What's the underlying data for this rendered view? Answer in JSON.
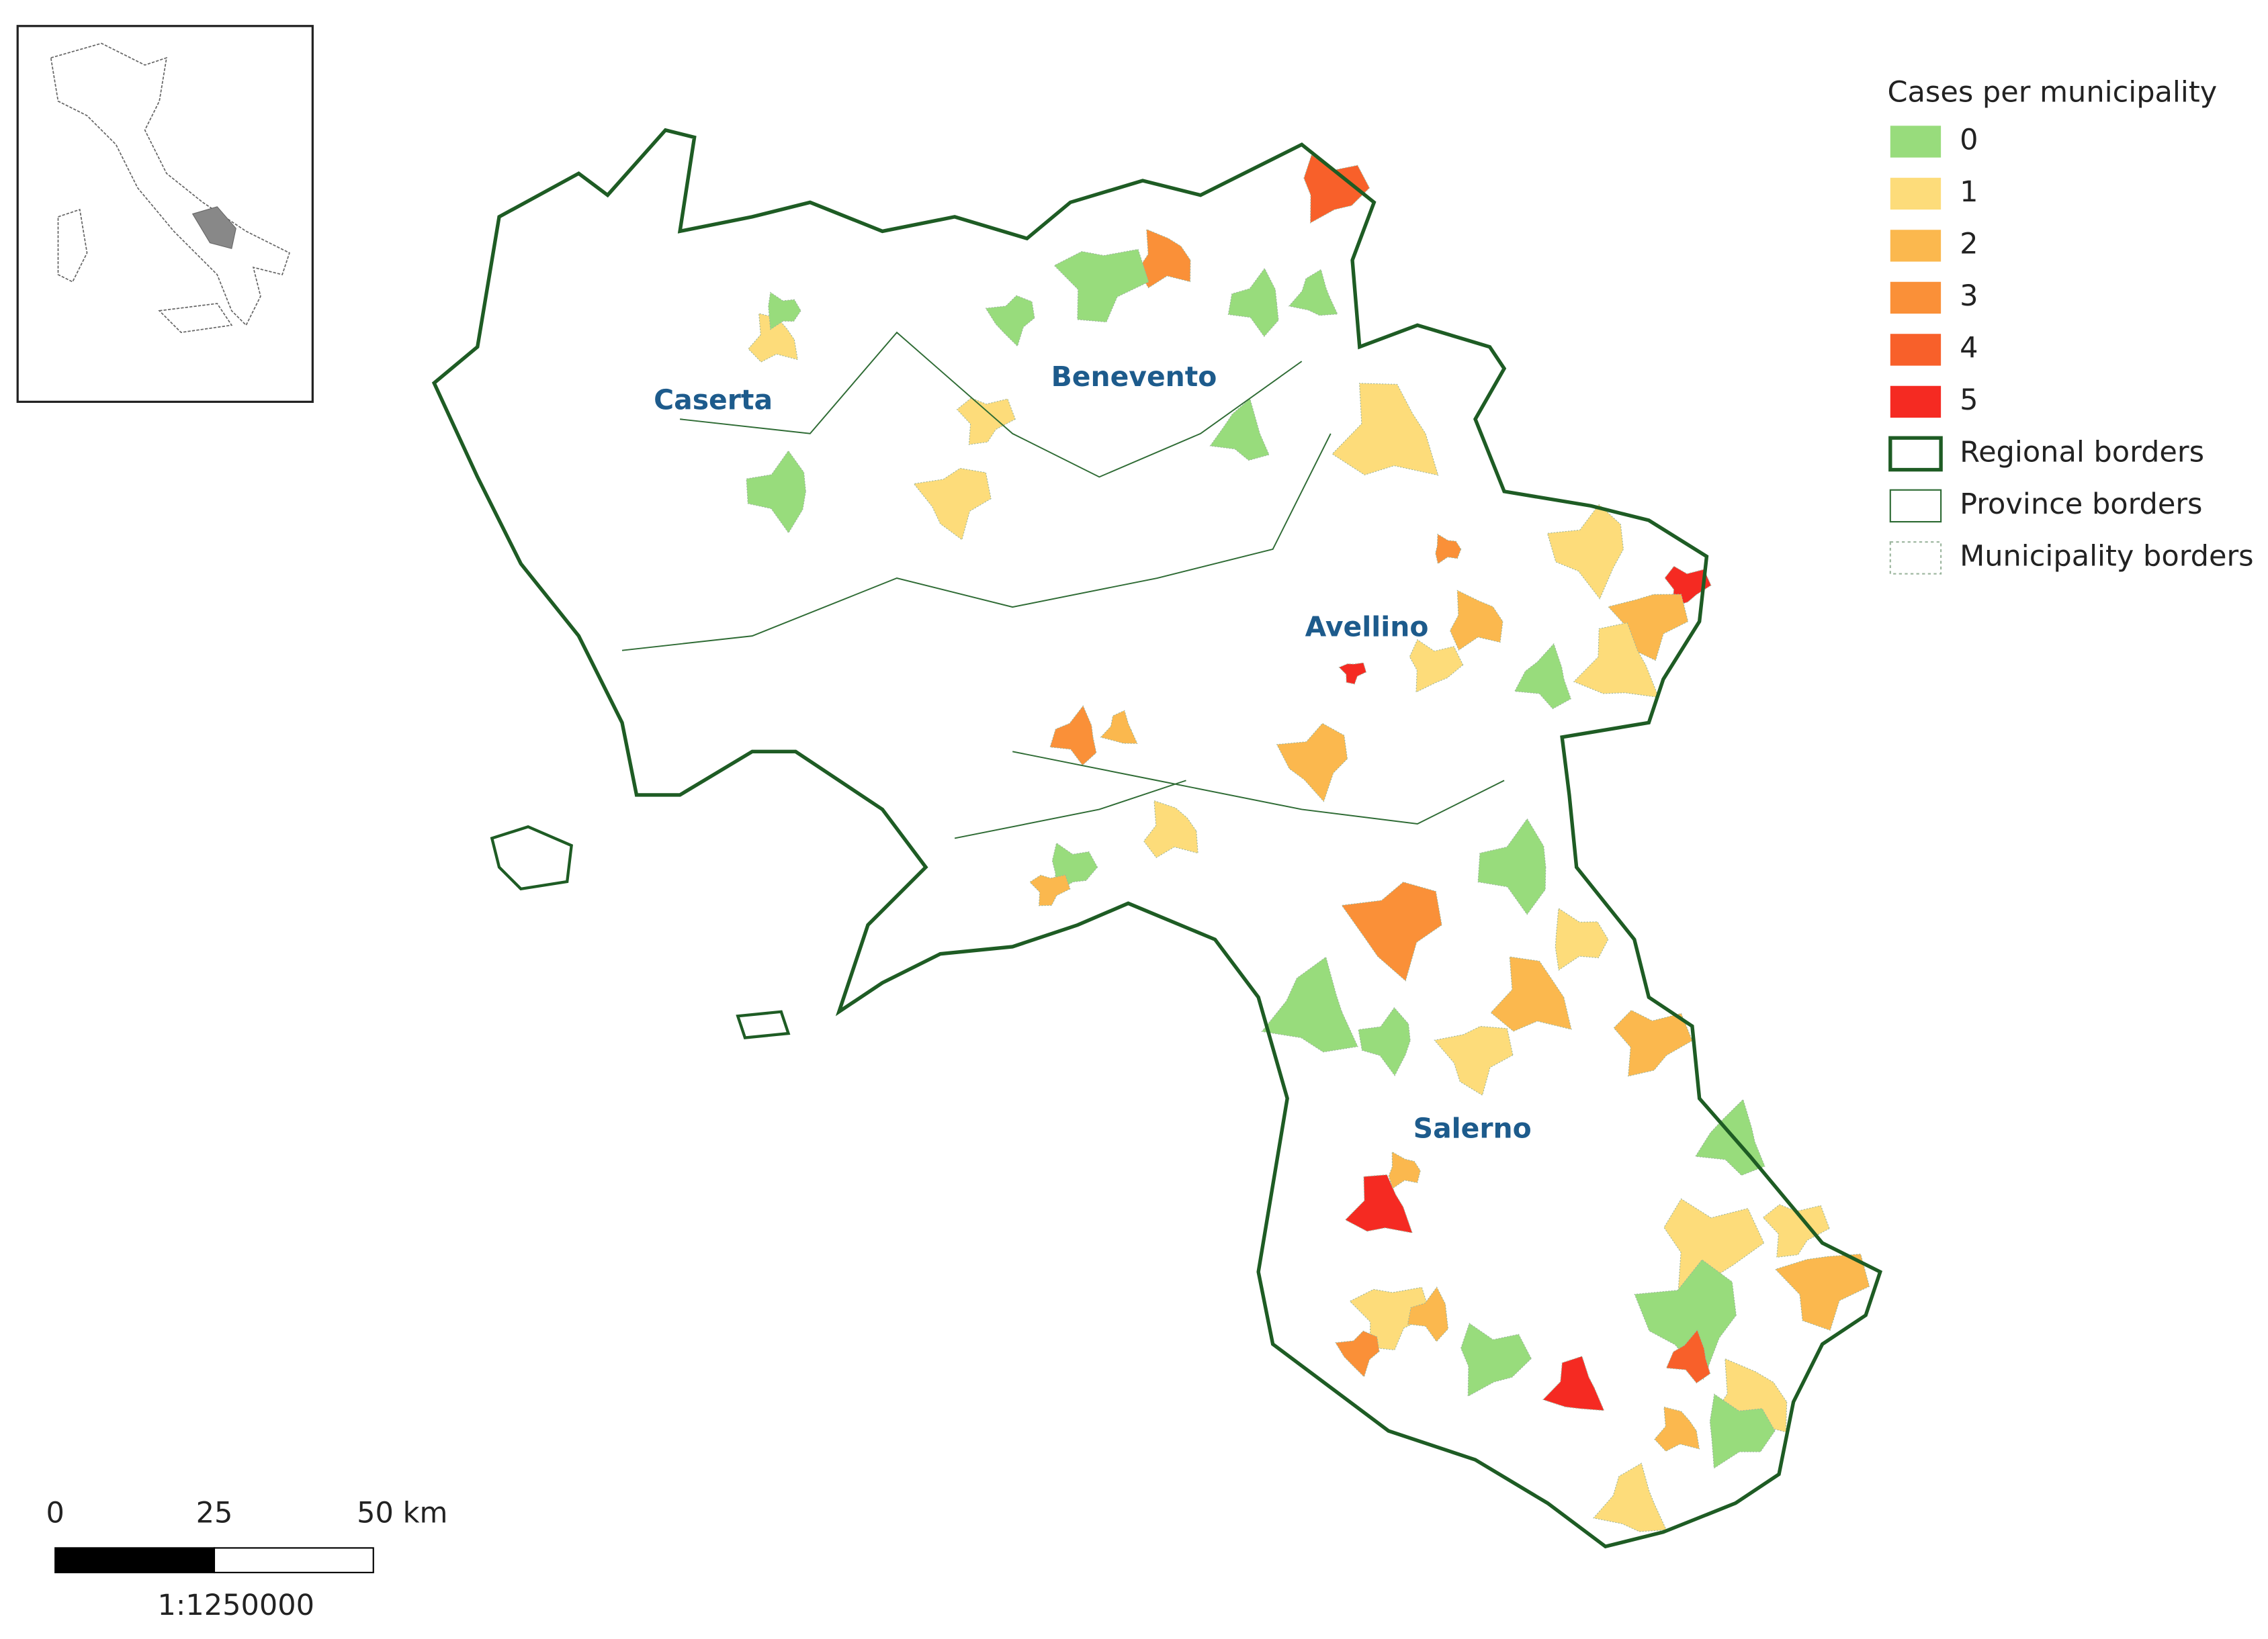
{
  "legend": {
    "title": "Cases per municipality",
    "items": [
      {
        "label": "0",
        "color": "#98dc7c"
      },
      {
        "label": "1",
        "color": "#fddc7a"
      },
      {
        "label": "2",
        "color": "#fbb84e"
      },
      {
        "label": "3",
        "color": "#fa9038"
      },
      {
        "label": "4",
        "color": "#f8602a"
      },
      {
        "label": "5",
        "color": "#f52a22"
      }
    ],
    "borders": [
      {
        "label": "Regional borders"
      },
      {
        "label": "Province borders"
      },
      {
        "label": "Municipality borders"
      }
    ]
  },
  "provinces": [
    "Caserta",
    "Benevento",
    "Avellino",
    "Salerno"
  ],
  "scale_bar": {
    "labels": [
      "0",
      "25",
      "50 km"
    ],
    "ratio": "1:1250000"
  },
  "municipalities_cases": [
    3,
    4,
    0,
    0,
    0,
    0,
    1,
    0,
    1,
    1,
    0,
    0,
    1,
    3,
    5,
    2,
    1,
    0,
    1,
    2,
    1,
    5,
    2,
    3,
    2,
    1,
    0,
    2,
    3,
    0,
    0,
    2,
    1,
    2,
    1,
    0,
    0,
    5,
    2,
    1,
    2,
    0,
    4,
    5,
    1,
    0,
    1,
    3,
    2,
    1,
    2,
    0,
    1
  ]
}
